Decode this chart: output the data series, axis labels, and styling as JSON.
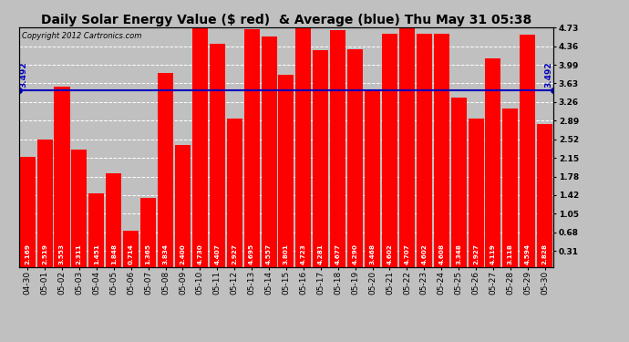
{
  "title": "Daily Solar Energy Value ($ red)  & Average (blue) Thu May 31 05:38",
  "copyright": "Copyright 2012 Cartronics.com",
  "average": 3.492,
  "bar_color": "#FF0000",
  "average_color": "#0000BB",
  "background_color": "#C0C0C0",
  "plot_bg_color": "#C0C0C0",
  "categories": [
    "04-30",
    "05-01",
    "05-02",
    "05-03",
    "05-04",
    "05-05",
    "05-06",
    "05-07",
    "05-08",
    "05-09",
    "05-10",
    "05-11",
    "05-12",
    "05-13",
    "05-14",
    "05-15",
    "05-16",
    "05-17",
    "05-18",
    "05-19",
    "05-20",
    "05-21",
    "05-22",
    "05-23",
    "05-24",
    "05-25",
    "05-26",
    "05-27",
    "05-28",
    "05-29",
    "05-30"
  ],
  "values": [
    2.169,
    2.519,
    3.553,
    2.311,
    1.451,
    1.848,
    0.714,
    1.365,
    3.834,
    2.4,
    4.73,
    4.407,
    2.927,
    4.695,
    4.557,
    3.801,
    4.723,
    4.281,
    4.677,
    4.29,
    3.468,
    4.602,
    4.707,
    4.602,
    4.608,
    3.348,
    2.927,
    4.119,
    3.118,
    4.594,
    2.828
  ],
  "ylim_min": 0.0,
  "ylim_max": 4.73,
  "right_yticks": [
    0.31,
    0.68,
    1.05,
    1.42,
    1.78,
    2.15,
    2.52,
    2.89,
    3.26,
    3.63,
    3.99,
    4.36,
    4.73
  ],
  "title_fontsize": 10,
  "tick_fontsize": 6.5,
  "value_fontsize": 5.2,
  "copyright_fontsize": 6
}
